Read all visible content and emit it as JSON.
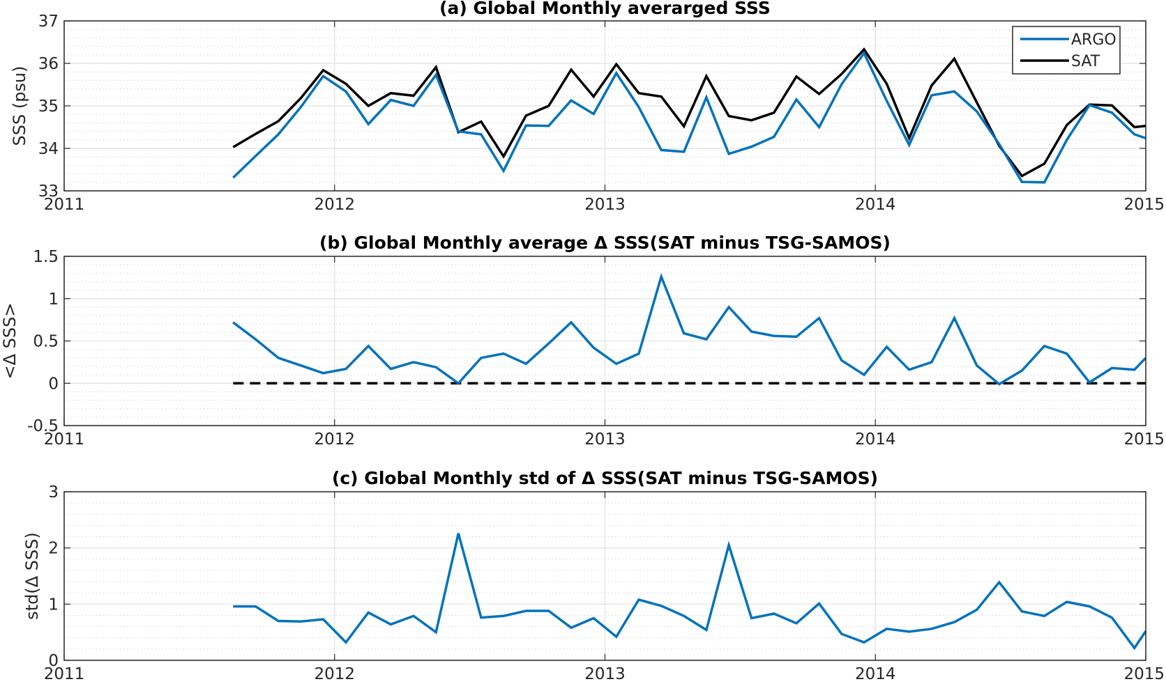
{
  "chart_data": [
    {
      "type": "line",
      "title": "(a) Global Monthly averarged SSS",
      "xlabel": "",
      "ylabel": "SSS (psu)",
      "xlim": [
        2011,
        2015
      ],
      "ylim": [
        33,
        37
      ],
      "xticks": [
        "2011",
        "2012",
        "2013",
        "2014",
        "2015"
      ],
      "yticks": [
        "33",
        "34",
        "35",
        "36",
        "37"
      ],
      "grid": true,
      "minor_grid": true,
      "legend": "top-right",
      "x": [
        2011.625,
        2011.708,
        2011.792,
        2011.875,
        2011.958,
        2012.042,
        2012.125,
        2012.208,
        2012.292,
        2012.375,
        2012.458,
        2012.542,
        2012.625,
        2012.708,
        2012.792,
        2012.875,
        2012.958,
        2013.042,
        2013.125,
        2013.208,
        2013.292,
        2013.375,
        2013.458,
        2013.542,
        2013.625,
        2013.708,
        2013.792,
        2013.875,
        2013.958,
        2014.042,
        2014.125,
        2014.208,
        2014.292,
        2014.375,
        2014.458,
        2014.542,
        2014.625,
        2014.708,
        2014.792,
        2014.875,
        2014.958,
        2015.0
      ],
      "series": [
        {
          "name": "ARGO",
          "color": "#0072BD",
          "values": [
            33.31,
            33.82,
            34.33,
            34.97,
            35.7,
            35.34,
            34.57,
            35.14,
            35.0,
            35.73,
            34.4,
            34.33,
            33.47,
            34.54,
            34.53,
            35.13,
            34.81,
            35.77,
            34.97,
            33.96,
            33.92,
            35.2,
            33.87,
            34.04,
            34.27,
            35.15,
            34.5,
            35.51,
            36.24,
            35.12,
            34.08,
            35.25,
            35.34,
            34.87,
            34.1,
            33.21,
            33.2,
            34.2,
            35.02,
            34.84,
            34.33,
            34.24
          ]
        },
        {
          "name": "SAT",
          "color": "#000000",
          "values": [
            34.03,
            34.34,
            34.64,
            35.18,
            35.84,
            35.52,
            35.0,
            35.3,
            35.24,
            35.91,
            34.38,
            34.63,
            33.81,
            34.77,
            35.0,
            35.85,
            35.22,
            35.98,
            35.3,
            35.22,
            34.52,
            35.7,
            34.76,
            34.66,
            34.84,
            35.69,
            35.28,
            35.75,
            36.33,
            35.52,
            34.24,
            35.48,
            36.11,
            35.08,
            34.06,
            33.35,
            33.64,
            34.55,
            35.03,
            35.01,
            34.5,
            34.53
          ]
        }
      ]
    },
    {
      "type": "line",
      "title": "(b) Global Monthly average Δ SSS(SAT minus TSG-SAMOS)",
      "xlabel": "",
      "ylabel": "<Δ SSS>",
      "xlim": [
        2011,
        2015
      ],
      "ylim": [
        -0.5,
        1.5
      ],
      "xticks": [
        "2011",
        "2012",
        "2013",
        "2014",
        "2015"
      ],
      "yticks": [
        "-0.5",
        "0",
        "0.5",
        "1",
        "1.5"
      ],
      "grid": true,
      "minor_grid": true,
      "reference_line": {
        "y": 0,
        "style": "dashed",
        "color": "#000000"
      },
      "x": [
        2011.625,
        2011.708,
        2011.792,
        2011.875,
        2011.958,
        2012.042,
        2012.125,
        2012.208,
        2012.292,
        2012.375,
        2012.458,
        2012.542,
        2012.625,
        2012.708,
        2012.792,
        2012.875,
        2012.958,
        2013.042,
        2013.125,
        2013.208,
        2013.292,
        2013.375,
        2013.458,
        2013.542,
        2013.625,
        2013.708,
        2013.792,
        2013.875,
        2013.958,
        2014.042,
        2014.125,
        2014.208,
        2014.292,
        2014.375,
        2014.458,
        2014.542,
        2014.625,
        2014.708,
        2014.792,
        2014.875,
        2014.958,
        2015.0
      ],
      "series": [
        {
          "color": "#0072BD",
          "values": [
            0.72,
            0.52,
            0.3,
            0.21,
            0.12,
            0.17,
            0.44,
            0.17,
            0.25,
            0.19,
            0.0,
            0.3,
            0.35,
            0.23,
            0.47,
            0.72,
            0.42,
            0.23,
            0.35,
            1.26,
            0.59,
            0.52,
            0.9,
            0.61,
            0.56,
            0.55,
            0.77,
            0.27,
            0.1,
            0.43,
            0.16,
            0.25,
            0.77,
            0.21,
            -0.01,
            0.15,
            0.44,
            0.35,
            0.01,
            0.18,
            0.16,
            0.3
          ]
        }
      ]
    },
    {
      "type": "line",
      "title": "(c) Global Monthly std of Δ SSS(SAT minus TSG-SAMOS)",
      "xlabel": "",
      "ylabel": "std(Δ SSS)",
      "xlim": [
        2011,
        2015
      ],
      "ylim": [
        0,
        3
      ],
      "xticks": [
        "2011",
        "2012",
        "2013",
        "2014",
        "2015"
      ],
      "yticks": [
        "0",
        "1",
        "2",
        "3"
      ],
      "grid": true,
      "minor_grid": true,
      "x": [
        2011.625,
        2011.708,
        2011.792,
        2011.875,
        2011.958,
        2012.042,
        2012.125,
        2012.208,
        2012.292,
        2012.375,
        2012.458,
        2012.542,
        2012.625,
        2012.708,
        2012.792,
        2012.875,
        2012.958,
        2013.042,
        2013.125,
        2013.208,
        2013.292,
        2013.375,
        2013.458,
        2013.542,
        2013.625,
        2013.708,
        2013.792,
        2013.875,
        2013.958,
        2014.042,
        2014.125,
        2014.208,
        2014.292,
        2014.375,
        2014.458,
        2014.542,
        2014.625,
        2014.708,
        2014.792,
        2014.875,
        2014.958,
        2015.0
      ],
      "series": [
        {
          "color": "#0072BD",
          "values": [
            0.96,
            0.96,
            0.7,
            0.69,
            0.73,
            0.32,
            0.85,
            0.64,
            0.79,
            0.5,
            2.26,
            0.76,
            0.79,
            0.88,
            0.88,
            0.58,
            0.75,
            0.42,
            1.08,
            0.97,
            0.79,
            0.54,
            2.05,
            0.75,
            0.83,
            0.66,
            1.01,
            0.47,
            0.32,
            0.56,
            0.51,
            0.56,
            0.68,
            0.9,
            1.39,
            0.87,
            0.79,
            1.04,
            0.96,
            0.76,
            0.22,
            0.52
          ]
        }
      ]
    }
  ]
}
